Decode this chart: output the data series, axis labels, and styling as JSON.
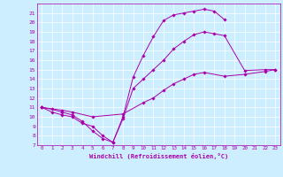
{
  "title": "",
  "xlabel": "Windchill (Refroidissement éolien,°C)",
  "ylabel": "",
  "bg_color": "#cceeff",
  "line_color": "#aa00aa",
  "xlim": [
    -0.5,
    23.5
  ],
  "ylim": [
    7,
    22
  ],
  "yticks": [
    7,
    8,
    9,
    10,
    11,
    12,
    13,
    14,
    15,
    16,
    17,
    18,
    19,
    20,
    21
  ],
  "xticks": [
    0,
    1,
    2,
    3,
    4,
    5,
    6,
    7,
    8,
    9,
    10,
    11,
    12,
    13,
    14,
    15,
    16,
    17,
    18,
    19,
    20,
    21,
    22,
    23
  ],
  "series": [
    {
      "x": [
        0,
        1,
        2,
        3,
        4,
        5,
        6,
        7,
        8,
        9,
        10,
        11,
        12,
        13,
        14,
        15,
        16,
        17,
        18
      ],
      "y": [
        11,
        10.8,
        10.5,
        10.2,
        9.5,
        8.5,
        7.7,
        7.3,
        10.0,
        14.2,
        16.5,
        18.5,
        20.2,
        20.8,
        21.0,
        21.2,
        21.4,
        21.2,
        20.3
      ]
    },
    {
      "x": [
        0,
        1,
        2,
        3,
        4,
        5,
        6,
        7,
        8,
        9,
        10,
        11,
        12,
        13,
        14,
        15,
        16,
        17,
        18,
        20,
        22,
        23
      ],
      "y": [
        11,
        10.5,
        10.2,
        10.0,
        9.3,
        9.0,
        8.0,
        7.3,
        9.8,
        13.0,
        14.0,
        15.0,
        16.0,
        17.2,
        18.0,
        18.7,
        19.0,
        18.8,
        18.6,
        14.9,
        15.0,
        15.0
      ]
    },
    {
      "x": [
        0,
        2,
        3,
        5,
        8,
        10,
        11,
        12,
        13,
        14,
        15,
        16,
        18,
        20,
        22,
        23
      ],
      "y": [
        11,
        10.7,
        10.5,
        10.0,
        10.3,
        11.5,
        12.0,
        12.8,
        13.5,
        14.0,
        14.5,
        14.7,
        14.3,
        14.5,
        14.8,
        15.0
      ]
    }
  ]
}
